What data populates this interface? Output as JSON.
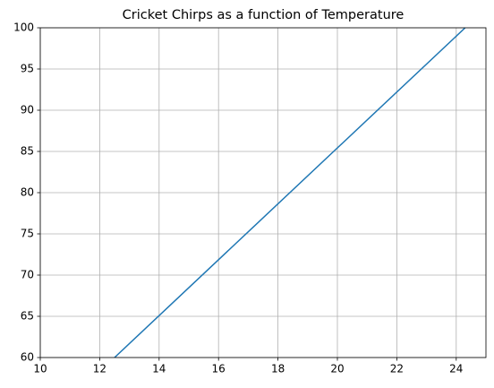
{
  "chart_data": {
    "type": "line",
    "title": "Cricket Chirps as a function of Temperature",
    "x": [
      12.5,
      24.3
    ],
    "series": [
      {
        "values": [
          60,
          100
        ],
        "color": "#1f77b4"
      }
    ],
    "xlim": [
      10,
      25
    ],
    "xticks": [
      10,
      12,
      14,
      16,
      18,
      20,
      22,
      24
    ],
    "ylim": [
      60,
      100
    ],
    "yticks": [
      60,
      65,
      70,
      75,
      80,
      85,
      90,
      95,
      100
    ],
    "grid": true
  }
}
